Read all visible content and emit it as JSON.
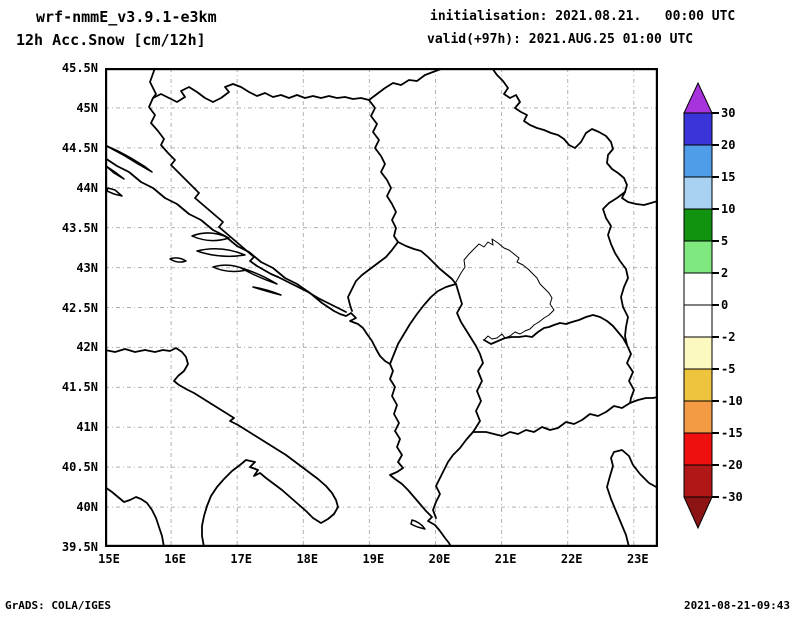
{
  "header": {
    "model": "wrf-nmmE_v3.9.1-e3km",
    "product": "12h Acc.Snow [cm/12h]",
    "init_label": "initialisation: 2021.08.21.   00:00 UTC",
    "valid_label": "valid(+97h): 2021.AUG.25 01:00 UTC"
  },
  "footer": {
    "credit": "GrADS: COLA/IGES",
    "timestamp": "2021-08-21-09:43"
  },
  "axes": {
    "lat_ticks": [
      "45.5N",
      "45N",
      "44.5N",
      "44N",
      "43.5N",
      "43N",
      "42.5N",
      "42N",
      "41.5N",
      "41N",
      "40.5N",
      "40N",
      "39.5N"
    ],
    "lon_ticks": [
      "15E",
      "16E",
      "17E",
      "18E",
      "19E",
      "20E",
      "21E",
      "22E",
      "23E"
    ]
  },
  "colorbar": {
    "boundary_labels": [
      "30",
      "20",
      "15",
      "10",
      "5",
      "2",
      "0",
      "-2",
      "-5",
      "-10",
      "-15",
      "-20",
      "-30"
    ],
    "segment_colors_top_to_bottom": [
      "#3b35d9",
      "#4f9de8",
      "#a9d2f2",
      "#11930f",
      "#7fe87f",
      "#ffffff",
      "#ffffff",
      "#fbf8c0",
      "#eec33e",
      "#f29b44",
      "#ee100f",
      "#b11717"
    ],
    "arrow_top_color": "#a733dd",
    "arrow_bottom_color": "#8c1414"
  },
  "chart_data": {
    "type": "map",
    "title": "12h Acc.Snow [cm/12h]",
    "model": "wrf-nmmE_v3.9.1-e3km",
    "initialisation": "2021.08.21. 00:00 UTC",
    "valid": "+97h: 2021.AUG.25 01:00 UTC",
    "region": {
      "lon_min": "15E",
      "lon_max": "23.4E",
      "lat_min": "39.5N",
      "lat_max": "45.5N",
      "area": "Western Balkans / Adriatic"
    },
    "x_tick_values_deg_e": [
      15,
      16,
      17,
      18,
      19,
      20,
      21,
      22,
      23
    ],
    "y_tick_values_deg_n": [
      45.5,
      45,
      44.5,
      44,
      43.5,
      43,
      42.5,
      42,
      41.5,
      41,
      40.5,
      40,
      39.5
    ],
    "grid": "dotted gray, 1 deg lon x 0.5 deg lat",
    "colorbar_levels_cm_per_12h": [
      30,
      20,
      15,
      10,
      5,
      2,
      0,
      -2,
      -5,
      -10,
      -15,
      -20,
      -30
    ],
    "field_values_shown": "no nonzero snow accumulation shading visible anywhere in the domain (map is blank white)",
    "legend_position": "right"
  }
}
